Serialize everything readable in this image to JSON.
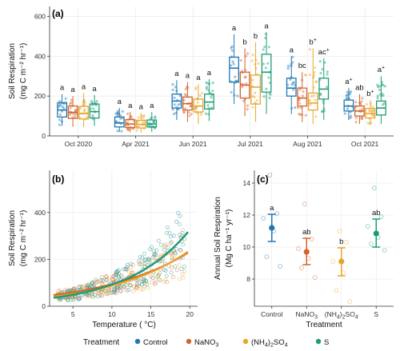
{
  "colors": {
    "Control": "#1f77b4",
    "NaNO3": "#d4622a",
    "(NH4)2SO4": "#e8a52a",
    "S": "#1a9e77"
  },
  "legend": {
    "title": "Treatment",
    "items": [
      {
        "key": "Control",
        "label": "Control"
      },
      {
        "key": "NaNO3",
        "label": "NaNO",
        "sub": "3"
      },
      {
        "key": "(NH4)2SO4",
        "label": "(NH",
        "sub": "4",
        "label2": ")",
        "sub2": "2",
        "label3": "SO",
        "sub3": "4"
      },
      {
        "key": "S",
        "label": "S"
      }
    ]
  },
  "chart_data": [
    {
      "panel": "(a)",
      "type": "box",
      "ylabel_line1": "Soil Respiration",
      "ylabel_line2": "(mg C m⁻² hr⁻¹)",
      "ylim": [
        0,
        650
      ],
      "yticks": [
        0,
        200,
        400,
        600
      ],
      "categories": [
        "Oct 2020",
        "Apr 2021",
        "Jun 2021",
        "Jul 2021",
        "Aug 2021",
        "Oct 2021"
      ],
      "series_order": [
        "Control",
        "NaNO3",
        "(NH4)2SO4",
        "S"
      ],
      "boxes": {
        "Oct 2020": [
          {
            "q1": 95,
            "med": 130,
            "q3": 165,
            "lo": 50,
            "hi": 210,
            "letter": "a"
          },
          {
            "q1": 88,
            "med": 118,
            "q3": 150,
            "lo": 45,
            "hi": 200,
            "letter": "a"
          },
          {
            "q1": 85,
            "med": 112,
            "q3": 148,
            "lo": 45,
            "hi": 215,
            "letter": "a"
          },
          {
            "q1": 90,
            "med": 122,
            "q3": 160,
            "lo": 50,
            "hi": 205,
            "letter": "a"
          }
        ],
        "Apr 2021": [
          {
            "q1": 45,
            "med": 65,
            "q3": 95,
            "lo": 20,
            "hi": 140,
            "letter": "a"
          },
          {
            "q1": 42,
            "med": 60,
            "q3": 82,
            "lo": 18,
            "hi": 120,
            "letter": "a"
          },
          {
            "q1": 40,
            "med": 58,
            "q3": 78,
            "lo": 15,
            "hi": 115,
            "letter": "a"
          },
          {
            "q1": 45,
            "med": 60,
            "q3": 80,
            "lo": 20,
            "hi": 120,
            "letter": "a"
          }
        ],
        "Jun 2021": [
          {
            "q1": 140,
            "med": 175,
            "q3": 210,
            "lo": 80,
            "hi": 280,
            "letter": "a"
          },
          {
            "q1": 130,
            "med": 162,
            "q3": 195,
            "lo": 70,
            "hi": 270,
            "letter": "a"
          },
          {
            "q1": 120,
            "med": 150,
            "q3": 185,
            "lo": 60,
            "hi": 260,
            "letter": "a"
          },
          {
            "q1": 135,
            "med": 170,
            "q3": 210,
            "lo": 75,
            "hi": 285,
            "letter": "a"
          }
        ],
        "Jul 2021": [
          {
            "q1": 270,
            "med": 340,
            "q3": 395,
            "lo": 160,
            "hi": 510,
            "letter": "a"
          },
          {
            "q1": 190,
            "med": 255,
            "q3": 320,
            "lo": 100,
            "hi": 440,
            "letter": "b"
          },
          {
            "q1": 160,
            "med": 245,
            "q3": 305,
            "lo": 70,
            "hi": 470,
            "letter": "b"
          },
          {
            "q1": 220,
            "med": 320,
            "q3": 410,
            "lo": 110,
            "hi": 520,
            "letter": "a"
          }
        ],
        "Aug 2021": [
          {
            "q1": 200,
            "med": 240,
            "q3": 290,
            "lo": 110,
            "hi": 400,
            "letter": "a"
          },
          {
            "q1": 150,
            "med": 190,
            "q3": 240,
            "lo": 70,
            "hi": 320,
            "letter": "bc"
          },
          {
            "q1": 130,
            "med": 165,
            "q3": 215,
            "lo": 60,
            "hi": 440,
            "letter": "b+"
          },
          {
            "q1": 185,
            "med": 235,
            "q3": 290,
            "lo": 80,
            "hi": 390,
            "letter": "ac+"
          }
        ],
        "Oct 2021": [
          {
            "q1": 125,
            "med": 150,
            "q3": 180,
            "lo": 80,
            "hi": 240,
            "letter": "a+"
          },
          {
            "q1": 100,
            "med": 125,
            "q3": 150,
            "lo": 60,
            "hi": 210,
            "letter": "ab"
          },
          {
            "q1": 90,
            "med": 112,
            "q3": 138,
            "lo": 55,
            "hi": 180,
            "letter": "b+"
          },
          {
            "q1": 105,
            "med": 140,
            "q3": 175,
            "lo": 60,
            "hi": 300,
            "letter": "a+"
          }
        ]
      }
    },
    {
      "panel": "(b)",
      "type": "scatter",
      "xlabel": "Temperature ( °C)",
      "ylabel_line1": "Soil Respiration",
      "ylabel_line2": "(mg C m⁻² hr⁻¹)",
      "xlim": [
        2,
        21
      ],
      "ylim": [
        0,
        580
      ],
      "xticks": [
        5,
        10,
        15,
        20
      ],
      "yticks": [
        0,
        200,
        400
      ],
      "fits": {
        "Control": {
          "a": 26.0,
          "b": 0.1266
        },
        "NaNO3": {
          "a": 38.0,
          "b": 0.0908
        },
        "(NH4)2SO4": {
          "a": 32.0,
          "b": 0.1006
        },
        "S": {
          "a": 26.5,
          "b": 0.1254
        }
      },
      "fit_range": [
        2.5,
        19.8
      ]
    },
    {
      "panel": "(c)",
      "type": "dot",
      "ylabel_line1": "Annual Soil Respiration",
      "ylabel_line2": "(Mg C ha⁻¹ yr⁻¹)",
      "xlabel": "Treatment",
      "ylim": [
        6.3,
        14.8
      ],
      "yticks": [
        8,
        10,
        12,
        14
      ],
      "categories": [
        {
          "key": "Control",
          "label": "Control"
        },
        {
          "key": "NaNO3",
          "label": "NaNO",
          "sub": "3"
        },
        {
          "key": "(NH4)2SO4",
          "label": "(NH",
          "sub": "4",
          "label2": ")",
          "sub2": "2",
          "label3": "SO",
          "sub3": "4"
        },
        {
          "key": "S",
          "label": "S"
        }
      ],
      "means": [
        11.2,
        9.7,
        9.1,
        10.85
      ],
      "ci_low": [
        10.35,
        8.9,
        8.2,
        10.0
      ],
      "ci_high": [
        12.05,
        10.55,
        9.95,
        11.75
      ],
      "letters": [
        "a",
        "ab",
        "b",
        "ab"
      ],
      "raw": [
        [
          14.5,
          12.1,
          11.8,
          11.0,
          9.4,
          8.8
        ],
        [
          12.7,
          10.5,
          9.9,
          9.3,
          8.7,
          8.1
        ],
        [
          11.0,
          10.3,
          9.1,
          8.4,
          7.3,
          6.6
        ],
        [
          13.7,
          11.9,
          11.3,
          10.6,
          10.2,
          9.8
        ]
      ]
    }
  ]
}
